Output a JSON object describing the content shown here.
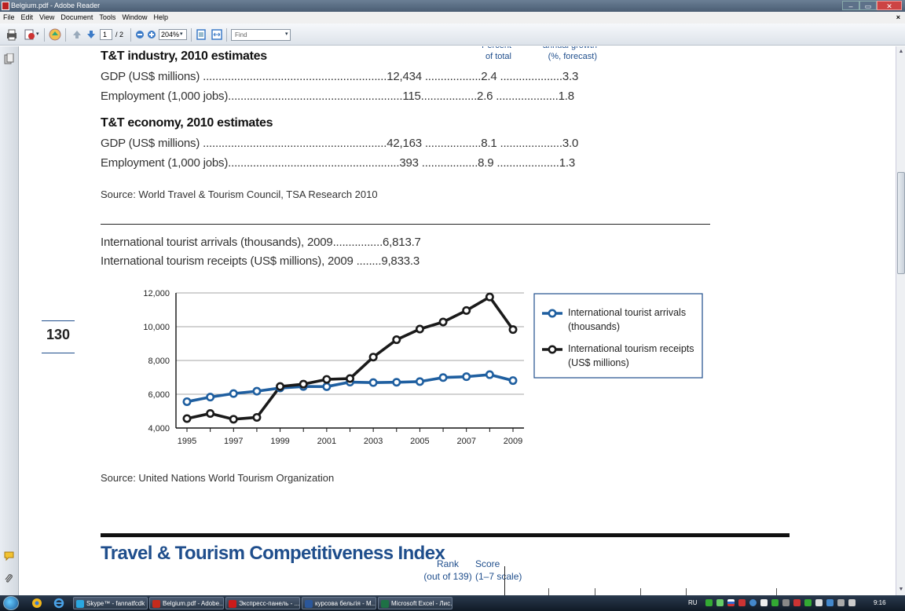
{
  "window": {
    "title": "Belgium.pdf - Adobe Reader",
    "min": "–",
    "max": "▭",
    "close": "✕"
  },
  "menu": {
    "items": [
      "File",
      "Edit",
      "View",
      "Document",
      "Tools",
      "Window",
      "Help"
    ],
    "close": "×"
  },
  "toolbar": {
    "page_current": "1",
    "page_total": "/ 2",
    "zoom": "204%",
    "find_placeholder": "Find"
  },
  "doc": {
    "pct_header": "Percent\nof total",
    "growth_header": "annual growth\n(%, forecast)",
    "industry_title": "T&T industry, 2010 estimates",
    "industry_rows": [
      "GDP (US$ millions) ...........................................................12,434 ..................2.4 ....................3.3",
      "Employment (1,000 jobs)........................................................115..................2.6 ....................1.8"
    ],
    "economy_title": "T&T economy, 2010 estimates",
    "economy_rows": [
      "GDP (US$ millions) ...........................................................42,163 ..................8.1 ....................3.0",
      "Employment (1,000 jobs).......................................................393 ..................8.9 ....................1.3"
    ],
    "source1": "Source: World Travel & Tourism Council, TSA Research 2010",
    "arrivals_line": "International tourist arrivals (thousands), 2009................6,813.7",
    "receipts_line": "International tourism receipts (US$ millions), 2009 ........9,833.3",
    "page_number": "130",
    "source2": "Source: United Nations World Tourism Organization",
    "ttci_title": "Travel & Tourism Competitiveness Index",
    "rank_header": "Rank\n(out of 139)",
    "score_header": "Score\n(1–7 scale)"
  },
  "chart_data": {
    "type": "line",
    "title": "",
    "xlabel": "",
    "ylabel": "",
    "x": [
      1995,
      1996,
      1997,
      1998,
      1999,
      2000,
      2001,
      2002,
      2003,
      2004,
      2005,
      2006,
      2007,
      2008,
      2009
    ],
    "x_tick_labels": [
      "1995",
      "1997",
      "1999",
      "2001",
      "2003",
      "2005",
      "2007",
      "2009"
    ],
    "y_tick_labels": [
      "4,000",
      "6,000",
      "8,000",
      "10,000",
      "12,000"
    ],
    "ylim": [
      4000,
      12000
    ],
    "grid": true,
    "legend_position": "right",
    "series": [
      {
        "name": "International tourist arrivals (thousands)",
        "legend_line1": "International tourist arrivals",
        "legend_line2": "(thousands)",
        "color": "#1f5fa0",
        "values": [
          5560,
          5830,
          6040,
          6180,
          6370,
          6460,
          6450,
          6720,
          6690,
          6710,
          6750,
          6990,
          7040,
          7160,
          6810
        ]
      },
      {
        "name": "International tourism receipts (US$ millions)",
        "legend_line1": "International tourism receipts",
        "legend_line2": "(US$ millions)",
        "color": "#1a1a1a",
        "values": [
          4560,
          4860,
          4520,
          4630,
          6460,
          6600,
          6880,
          6930,
          8200,
          9230,
          9860,
          10280,
          10960,
          11760,
          9830
        ]
      }
    ]
  },
  "taskbar": {
    "tasks": [
      {
        "label": "Skype™ - fannatfcdk",
        "color": "#2aa7e0"
      },
      {
        "label": "Belgium.pdf - Adobe...",
        "color": "#c42b1c"
      },
      {
        "label": "Экспресс-панель - ...",
        "color": "#cc1b1b"
      },
      {
        "label": "курсова бельгія - М...",
        "color": "#2b579a"
      },
      {
        "label": "Microsoft Excel - Лис...",
        "color": "#1e7145"
      }
    ],
    "lang": "RU",
    "time": "9:16"
  }
}
